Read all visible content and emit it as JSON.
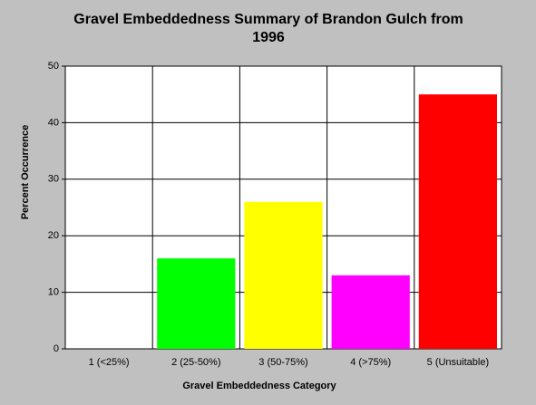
{
  "chart_data": {
    "type": "bar",
    "title": "Gravel Embeddedness Summary of Brandon Gulch from 1996",
    "x_label": "Gravel Embeddedness Category",
    "y_label": "Percent Occurrence",
    "categories": [
      "1 (<25%)",
      "2 (25-50%)",
      "3 (50-75%)",
      "4 (>75%)",
      "5 (Unsuitable)"
    ],
    "values": [
      0,
      16,
      26,
      13,
      45
    ],
    "colors": [
      "#0000ff",
      "#00ff00",
      "#ffff00",
      "#ff00ff",
      "#ff0000"
    ],
    "ylim": [
      0,
      50
    ],
    "yticks": [
      0,
      10,
      20,
      30,
      40,
      50
    ],
    "grid": true
  }
}
